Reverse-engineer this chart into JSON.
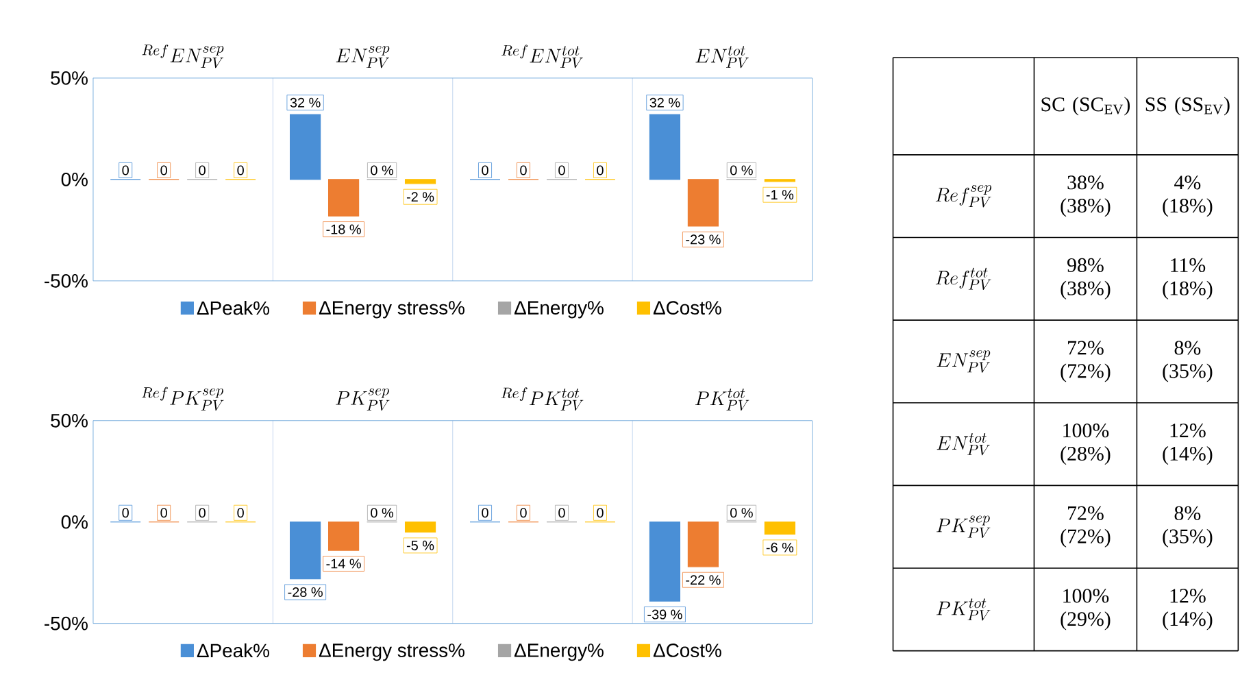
{
  "chart_data": [
    {
      "type": "bar",
      "categories": [
        "{}^{Ref}EN_{PV}^{sep}",
        "EN_{PV}^{sep}",
        "{}^{Ref}EN_{PV}^{tot}",
        "EN_{PV}^{tot}"
      ],
      "series": [
        {
          "name": "ΔPeak%",
          "color": "#4a8fd6",
          "values": [
            0,
            32,
            0,
            32
          ],
          "value_labels": [
            "0",
            "32 %",
            "0",
            "32 %"
          ]
        },
        {
          "name": "ΔEnergy stress%",
          "color": "#ed7d31",
          "values": [
            0,
            -18,
            0,
            -23
          ],
          "value_labels": [
            "0",
            "-18 %",
            "0",
            "-23 %"
          ]
        },
        {
          "name": "ΔEnergy%",
          "color": "#a5a5a5",
          "values": [
            0,
            0,
            0,
            0
          ],
          "value_labels": [
            "0",
            "0 %",
            "0",
            "0 %"
          ]
        },
        {
          "name": "ΔCost%",
          "color": "#ffc000",
          "values": [
            0,
            -2,
            0,
            -1
          ],
          "value_labels": [
            "0",
            "-2 %",
            "0",
            "-1 %"
          ]
        }
      ],
      "ylim": [
        -50,
        50
      ],
      "yticks": [
        {
          "value": -50,
          "label": "-50%"
        },
        {
          "value": 0,
          "label": "0%"
        },
        {
          "value": 50,
          "label": "50%"
        }
      ],
      "grid": "x",
      "legend": "bottom"
    },
    {
      "type": "bar",
      "categories": [
        "{}^{Ref}PK_{PV}^{sep}",
        "PK_{PV}^{sep}",
        "{}^{Ref}PK_{PV}^{tot}",
        "PK_{PV}^{tot}"
      ],
      "series": [
        {
          "name": "ΔPeak%",
          "color": "#4a8fd6",
          "values": [
            0,
            -28,
            0,
            -39
          ],
          "value_labels": [
            "0",
            "-28 %",
            "0",
            "-39 %"
          ]
        },
        {
          "name": "ΔEnergy stress%",
          "color": "#ed7d31",
          "values": [
            0,
            -14,
            0,
            -22
          ],
          "value_labels": [
            "0",
            "-14 %",
            "0",
            "-22 %"
          ]
        },
        {
          "name": "ΔEnergy%",
          "color": "#a5a5a5",
          "values": [
            0,
            0,
            0,
            0
          ],
          "value_labels": [
            "0",
            "0 %",
            "0",
            "0 %"
          ]
        },
        {
          "name": "ΔCost%",
          "color": "#ffc000",
          "values": [
            0,
            -5,
            0,
            -6
          ],
          "value_labels": [
            "0",
            "-5 %",
            "0",
            "-6 %"
          ]
        }
      ],
      "ylim": [
        -50,
        50
      ],
      "yticks": [
        {
          "value": -50,
          "label": "-50%"
        },
        {
          "value": 0,
          "label": "0%"
        },
        {
          "value": 50,
          "label": "50%"
        }
      ],
      "grid": "x",
      "legend": "bottom"
    },
    {
      "type": "other",
      "categories": [
        "SC (SC$_{EV}$)",
        "SS (SS$_{EV}$)"
      ],
      "y_categories": [
        "Ref_{PV}^{sep}",
        "Ref_{PV}^{tot}",
        "EN_{PV}^{sep}",
        "EN_{PV}^{tot}",
        "PK_{PV}^{sep}",
        "PK_{PV}^{tot}"
      ],
      "cell_labels": [
        [
          "38% (38%)",
          "4% (18%)"
        ],
        [
          "98% (38%)",
          "11% (18%)"
        ],
        [
          "72% (72%)",
          "8% (35%)"
        ],
        [
          "100% (28%)",
          "12% (14%)"
        ],
        [
          "72% (72%)",
          "8% (35%)"
        ],
        [
          "100% (29%)",
          "12% (14%)"
        ]
      ]
    }
  ]
}
